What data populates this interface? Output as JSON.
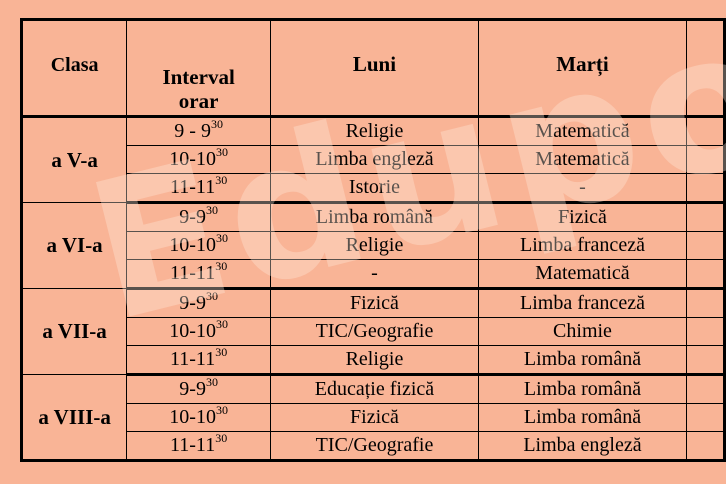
{
  "watermark": "Edupoc",
  "headers": {
    "clasa": "Clasa",
    "interval_line1": "Interval",
    "interval_line2": "orar",
    "luni": "Luni",
    "marti": "Marți"
  },
  "groups": [
    {
      "clasa": "a V-a",
      "rows": [
        {
          "start": "9 - 9",
          "sup": "30",
          "luni": "Religie",
          "marti": "Matematică"
        },
        {
          "start": "10-10",
          "sup": "30",
          "luni": "Limba engleză",
          "marti": "Matematică"
        },
        {
          "start": "11-11",
          "sup": "30",
          "luni": "Istorie",
          "marti": "-"
        }
      ]
    },
    {
      "clasa": "a VI-a",
      "rows": [
        {
          "start": "9-9",
          "sup": "30",
          "luni": "Limba română",
          "marti": "Fizică"
        },
        {
          "start": "10-10",
          "sup": "30",
          "luni": "Religie",
          "marti": "Limba franceză"
        },
        {
          "start": "11-11",
          "sup": "30",
          "luni": "-",
          "marti": "Matematică"
        }
      ]
    },
    {
      "clasa": "a VII-a",
      "rows": [
        {
          "start": "9-9",
          "sup": "30",
          "luni": "Fizică",
          "marti": "Limba franceză"
        },
        {
          "start": "10-10",
          "sup": "30",
          "luni": "TIC/Geografie",
          "marti": "Chimie"
        },
        {
          "start": "11-11",
          "sup": "30",
          "luni": "Religie",
          "marti": "Limba română"
        }
      ]
    },
    {
      "clasa": "a VIII-a",
      "rows": [
        {
          "start": "9-9",
          "sup": "30",
          "luni": "Educație fizică",
          "marti": "Limba română"
        },
        {
          "start": "10-10",
          "sup": "30",
          "luni": "Fizică",
          "marti": "Limba română"
        },
        {
          "start": "11-11",
          "sup": "30",
          "luni": "TIC/Geografie",
          "marti": "Limba engleză"
        }
      ]
    }
  ]
}
